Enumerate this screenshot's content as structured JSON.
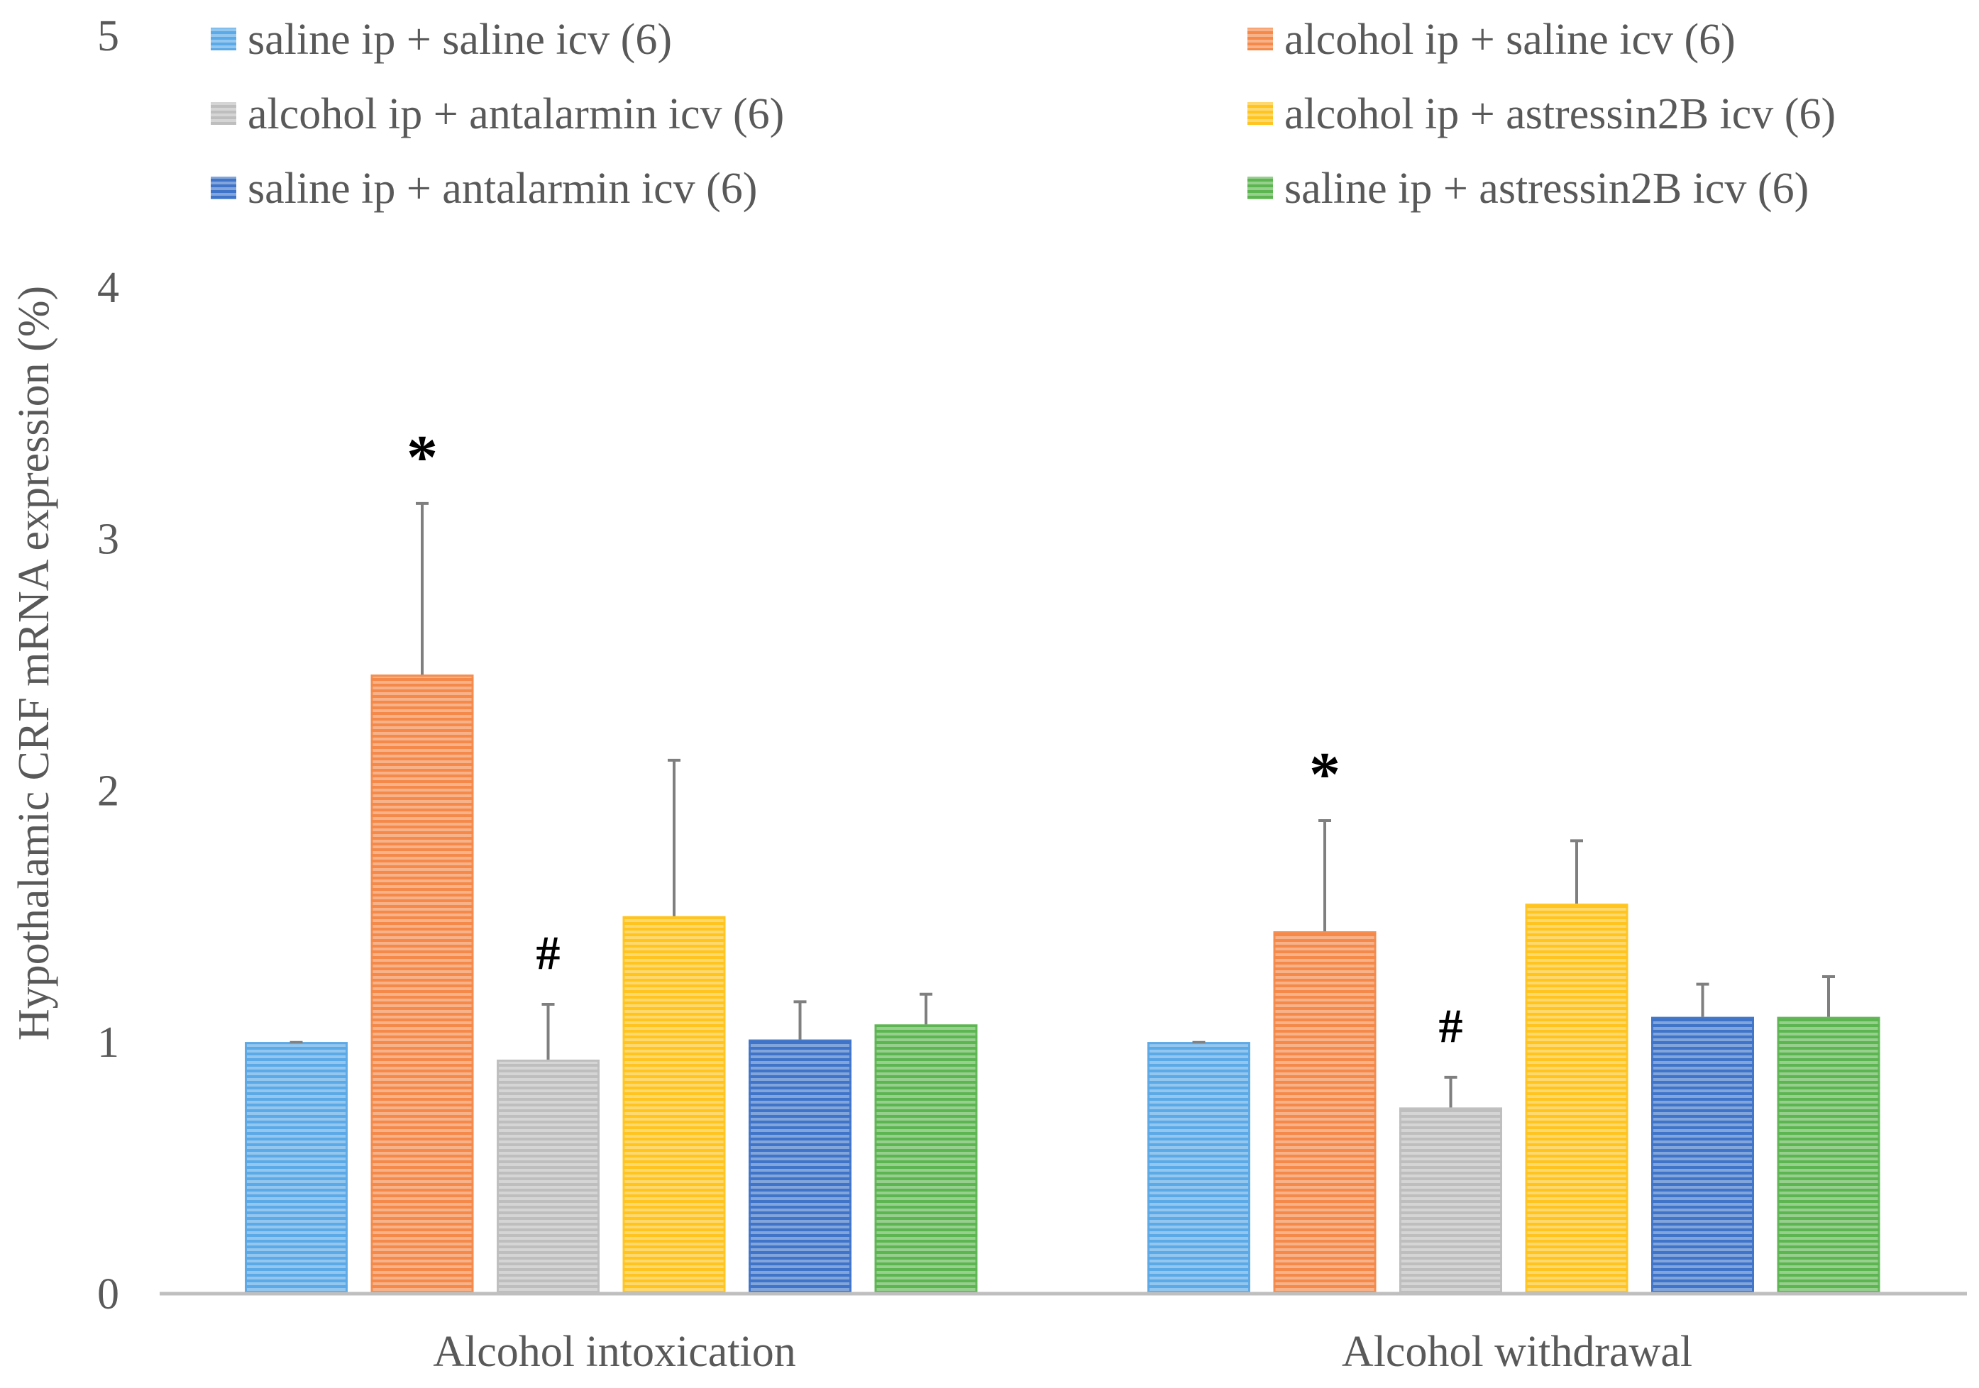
{
  "chart_data": {
    "type": "bar",
    "title": "",
    "xlabel": "",
    "ylabel": "Hypothalamic CRF mRNA expression (%)",
    "ylim": [
      0,
      5
    ],
    "yticks": [
      0,
      1,
      2,
      3,
      4,
      5
    ],
    "grid": false,
    "legend_position": "top",
    "categories": [
      "Alcohol intoxication",
      "Alcohol withdrawal"
    ],
    "series": [
      {
        "name": "saline ip + saline icv (6)",
        "color": "#5BA9E6",
        "values": [
          1.0,
          1.0
        ],
        "errors": [
          0.0,
          0.0
        ],
        "annotations": [
          "",
          ""
        ]
      },
      {
        "name": "alcohol ip + saline icv (6)",
        "color": "#F4894A",
        "values": [
          2.46,
          1.44
        ],
        "errors": [
          0.68,
          0.44
        ],
        "annotations": [
          "*",
          "*"
        ]
      },
      {
        "name": "alcohol ip + antalarmin icv (6)",
        "color": "#BEBEBE",
        "values": [
          0.93,
          0.74
        ],
        "errors": [
          0.22,
          0.12
        ],
        "annotations": [
          "#",
          "#"
        ]
      },
      {
        "name": "alcohol ip + astressin2B icv (6)",
        "color": "#FFC41F",
        "values": [
          1.5,
          1.55
        ],
        "errors": [
          0.62,
          0.25
        ],
        "annotations": [
          "",
          ""
        ]
      },
      {
        "name": "saline ip + antalarmin icv (6)",
        "color": "#3F74C8",
        "values": [
          1.01,
          1.1
        ],
        "errors": [
          0.15,
          0.13
        ],
        "annotations": [
          "",
          ""
        ]
      },
      {
        "name": "saline ip + astressin2B icv (6)",
        "color": "#5DB552",
        "values": [
          1.07,
          1.1
        ],
        "errors": [
          0.12,
          0.16
        ],
        "annotations": [
          "",
          ""
        ]
      }
    ]
  }
}
